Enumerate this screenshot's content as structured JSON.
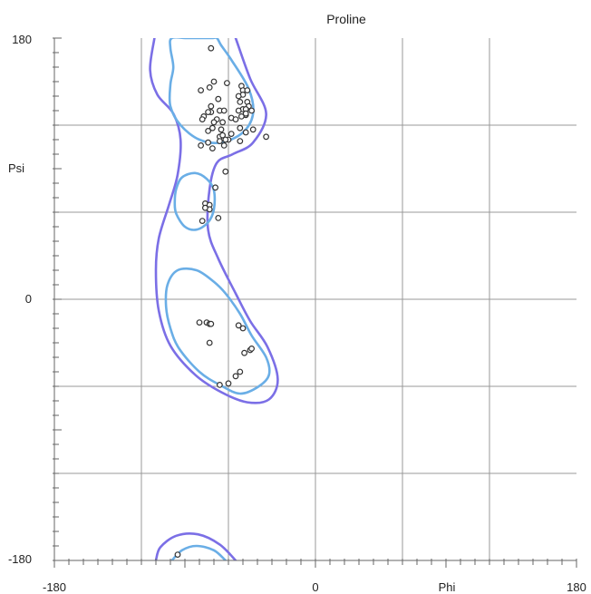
{
  "chart_data": {
    "type": "scatter",
    "title": "Proline",
    "xlabel": "Phi",
    "ylabel": "Psi",
    "xlim": [
      -180,
      180
    ],
    "ylim": [
      -180,
      180
    ],
    "grid": true,
    "x_ticks": [
      "-180",
      "0",
      "180"
    ],
    "y_ticks": [
      "180",
      "0",
      "-180"
    ],
    "colors": {
      "outer_contour": "#7b6fe6",
      "inner_contour": "#6aaee6",
      "grid": "#999999",
      "points": "#333333"
    },
    "contours": [
      {
        "level": "outer",
        "points": [
          [
            -111,
            180
          ],
          [
            -114,
            158
          ],
          [
            -109,
            141
          ],
          [
            -98,
            128
          ],
          [
            -93,
            110
          ],
          [
            -95,
            86
          ],
          [
            -101,
            65
          ],
          [
            -108,
            42
          ],
          [
            -110,
            20
          ],
          [
            -108,
            -8
          ],
          [
            -100,
            -32
          ],
          [
            -83,
            -52
          ],
          [
            -65,
            -64
          ],
          [
            -47,
            -71
          ],
          [
            -32,
            -69
          ],
          [
            -26,
            -55
          ],
          [
            -33,
            -33
          ],
          [
            -45,
            -15
          ],
          [
            -55,
            4
          ],
          [
            -67,
            28
          ],
          [
            -74,
            48
          ],
          [
            -73,
            76
          ],
          [
            -68,
            94
          ],
          [
            -57,
            100
          ],
          [
            -43,
            108
          ],
          [
            -34,
            128
          ],
          [
            -45,
            152
          ],
          [
            -55,
            180
          ]
        ]
      },
      {
        "level": "outer",
        "points": [
          [
            -110,
            -180
          ],
          [
            -107,
            -171
          ],
          [
            -96,
            -163
          ],
          [
            -81,
            -162
          ],
          [
            -66,
            -169
          ],
          [
            -55,
            -180
          ]
        ]
      },
      {
        "level": "inner",
        "points": [
          [
            -100,
            173
          ],
          [
            -98,
            160
          ],
          [
            -100,
            148
          ],
          [
            -100,
            133
          ],
          [
            -93,
            120
          ],
          [
            -80,
            110
          ],
          [
            -65,
            108
          ],
          [
            -50,
            115
          ],
          [
            -43,
            128
          ],
          [
            -46,
            145
          ],
          [
            -58,
            165
          ],
          [
            -65,
            175
          ],
          [
            -68,
            180
          ],
          [
            -72,
            180
          ],
          [
            -88,
            180
          ],
          [
            -99,
            180
          ]
        ]
      },
      {
        "level": "inner",
        "points": [
          [
            -97,
            67
          ],
          [
            -96,
            59
          ],
          [
            -90,
            50
          ],
          [
            -82,
            48
          ],
          [
            -74,
            53
          ],
          [
            -70,
            62
          ],
          [
            -70,
            75
          ],
          [
            -75,
            83
          ],
          [
            -83,
            87
          ],
          [
            -92,
            84
          ],
          [
            -96,
            76
          ]
        ]
      },
      {
        "level": "inner",
        "points": [
          [
            -103,
            -5
          ],
          [
            -100,
            -20
          ],
          [
            -94,
            -34
          ],
          [
            -80,
            -50
          ],
          [
            -66,
            -59
          ],
          [
            -52,
            -65
          ],
          [
            -39,
            -60
          ],
          [
            -32,
            -52
          ],
          [
            -34,
            -40
          ],
          [
            -44,
            -25
          ],
          [
            -52,
            -10
          ],
          [
            -62,
            4
          ],
          [
            -70,
            12
          ],
          [
            -82,
            20
          ],
          [
            -95,
            20
          ],
          [
            -102,
            10
          ]
        ]
      },
      {
        "level": "inner",
        "points": [
          [
            -99,
            -180
          ],
          [
            -92,
            -173
          ],
          [
            -82,
            -170
          ],
          [
            -70,
            -173
          ],
          [
            -62,
            -180
          ]
        ]
      }
    ],
    "points": [
      [
        -72,
        173
      ],
      [
        -73,
        146
      ],
      [
        -70,
        150
      ],
      [
        -61,
        149
      ],
      [
        -51,
        147
      ],
      [
        -50,
        144
      ],
      [
        -47,
        144
      ],
      [
        -50,
        141
      ],
      [
        -53,
        140
      ],
      [
        -52,
        136
      ],
      [
        -47,
        136
      ],
      [
        -46,
        133
      ],
      [
        -50,
        131
      ],
      [
        -53,
        130
      ],
      [
        -48,
        131
      ],
      [
        -44,
        130
      ],
      [
        -48,
        127
      ],
      [
        -51,
        126
      ],
      [
        -79,
        144
      ],
      [
        -67,
        138
      ],
      [
        -72,
        133
      ],
      [
        -72,
        129
      ],
      [
        -66,
        130
      ],
      [
        -63,
        130
      ],
      [
        -77,
        126
      ],
      [
        -74,
        129
      ],
      [
        -78,
        124
      ],
      [
        -68,
        124
      ],
      [
        -64,
        122
      ],
      [
        -58,
        125
      ],
      [
        -55,
        124
      ],
      [
        -48,
        128
      ],
      [
        -71,
        118
      ],
      [
        -70,
        122
      ],
      [
        -74,
        116
      ],
      [
        -65,
        117
      ],
      [
        -66,
        112
      ],
      [
        -60,
        110
      ],
      [
        -58,
        114
      ],
      [
        -64,
        113
      ],
      [
        -52,
        109
      ],
      [
        -48,
        115
      ],
      [
        -74,
        108
      ],
      [
        -79,
        106
      ],
      [
        -71,
        104
      ],
      [
        -63,
        106
      ],
      [
        -62,
        110
      ],
      [
        -66,
        109
      ],
      [
        -52,
        118
      ],
      [
        -34,
        112
      ],
      [
        -43,
        117
      ],
      [
        -62,
        88
      ],
      [
        -69,
        77
      ],
      [
        -76,
        66
      ],
      [
        -73,
        65
      ],
      [
        -73,
        62
      ],
      [
        -76,
        63
      ],
      [
        -67,
        56
      ],
      [
        -78,
        54
      ],
      [
        -80,
        -16
      ],
      [
        -75,
        -16
      ],
      [
        -73,
        -17
      ],
      [
        -72,
        -17
      ],
      [
        -53,
        -18
      ],
      [
        -50,
        -20
      ],
      [
        -73,
        -30
      ],
      [
        -49,
        -37
      ],
      [
        -45,
        -35
      ],
      [
        -44,
        -34
      ],
      [
        -52,
        -50
      ],
      [
        -55,
        -53
      ],
      [
        -60,
        -58
      ],
      [
        -66,
        -59
      ],
      [
        -95,
        -176
      ]
    ]
  }
}
